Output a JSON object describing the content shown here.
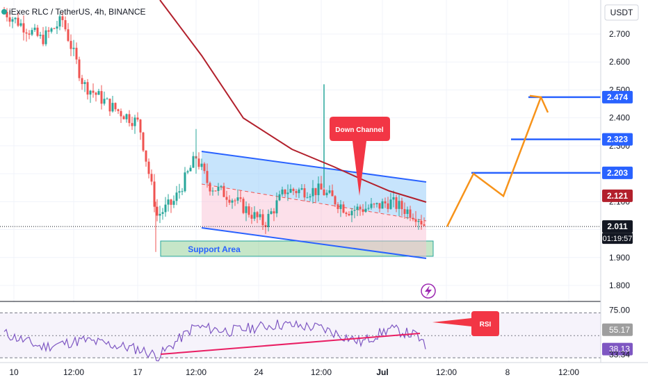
{
  "header": {
    "title": "iExec RLC / TetherUS, 4h, BINANCE",
    "currency": "USDT"
  },
  "chart_data": {
    "type": "candlestick",
    "ylim": [
      1.74,
      2.78
    ],
    "price_ticks": [
      "2.700",
      "2.600",
      "2.500",
      "2.400",
      "2.300",
      "2.200",
      "2.100",
      "1.900",
      "1.800"
    ],
    "time_ticks": [
      "10",
      "12:00",
      "17",
      "12:00",
      "24",
      "12:00",
      "Jul",
      "12:00",
      "8",
      "12:00"
    ],
    "badges": [
      {
        "name": "target-3",
        "value": "2.474",
        "color": "#2962ff"
      },
      {
        "name": "target-2",
        "value": "2.323",
        "color": "#2962ff"
      },
      {
        "name": "target-1",
        "value": "2.203",
        "color": "#2962ff"
      },
      {
        "name": "ema",
        "value": "2.121",
        "color": "#b2202c"
      },
      {
        "name": "last",
        "value": "2.011",
        "color": "#131722"
      }
    ],
    "countdown": "01:19:57",
    "annotations": {
      "down_channel": "Down Channel",
      "support": "Support Area",
      "rsi_label": "RSI"
    },
    "target_levels": [
      2.474,
      2.323,
      2.203
    ],
    "current_price": 2.011,
    "moving_average_value": 2.121,
    "projection_path": [
      2.011,
      2.2,
      2.12,
      2.474
    ],
    "rsi": {
      "levels": [
        "75.00",
        "55.17",
        "38.13",
        "33.34"
      ],
      "current": 38.13,
      "signal": 55.17,
      "ylim": [
        30,
        77
      ]
    },
    "colors": {
      "up": "#26a69a",
      "down": "#ef5350",
      "ma": "#b2202c",
      "channel": "#2962ff",
      "projection": "#f7931a",
      "rsi_line": "#7e57c2",
      "trendline": "#e91e63",
      "support": "#81c784"
    }
  }
}
